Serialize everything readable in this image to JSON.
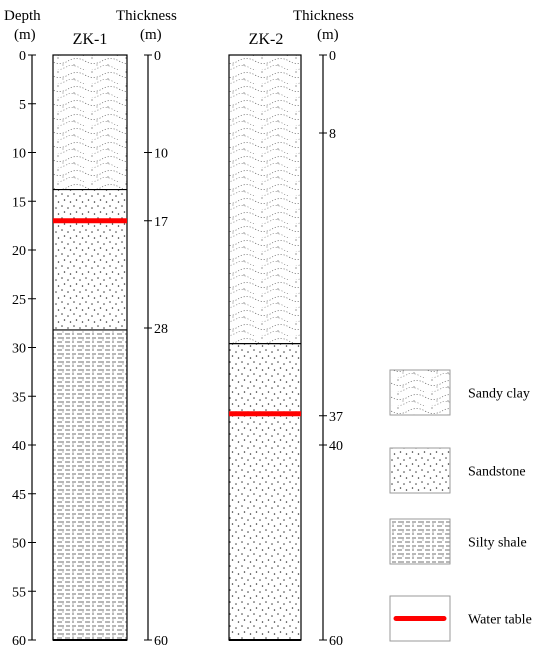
{
  "header": {
    "depth_label": "Depth",
    "depth_unit": "(m)",
    "thickness_label": "Thickness",
    "thickness_unit": "(m)"
  },
  "depth_axis": {
    "ticks": [
      0,
      5,
      10,
      15,
      20,
      25,
      30,
      35,
      40,
      45,
      50,
      55,
      60
    ],
    "max": 60
  },
  "boreholes": [
    {
      "name": "ZK-1",
      "layers": [
        {
          "type": "sandy_clay",
          "top": 0,
          "bottom": 13.8
        },
        {
          "type": "sandstone",
          "top": 13.8,
          "bottom": 28.2
        },
        {
          "type": "silty_shale",
          "top": 28.2,
          "bottom": 60
        }
      ],
      "water_table": 17,
      "thickness_ticks": [
        "0",
        "10",
        "17",
        "28",
        "60"
      ]
    },
    {
      "name": "ZK-2",
      "layers": [
        {
          "type": "sandy_clay",
          "top": 0,
          "bottom": 29.6
        },
        {
          "type": "sandstone",
          "top": 29.6,
          "bottom": 60
        }
      ],
      "water_table": 36.8,
      "thickness_ticks": [
        "0",
        "8",
        "37",
        "40",
        "60"
      ]
    }
  ],
  "legend": [
    {
      "type": "sandy_clay",
      "label": "Sandy clay"
    },
    {
      "type": "sandstone",
      "label": "Sandstone"
    },
    {
      "type": "silty_shale",
      "label": "Silty shale"
    },
    {
      "type": "water_table",
      "label": "Water table"
    }
  ],
  "colors": {
    "water_table": "#ff0000",
    "line": "#000000",
    "pattern": "#555555"
  }
}
